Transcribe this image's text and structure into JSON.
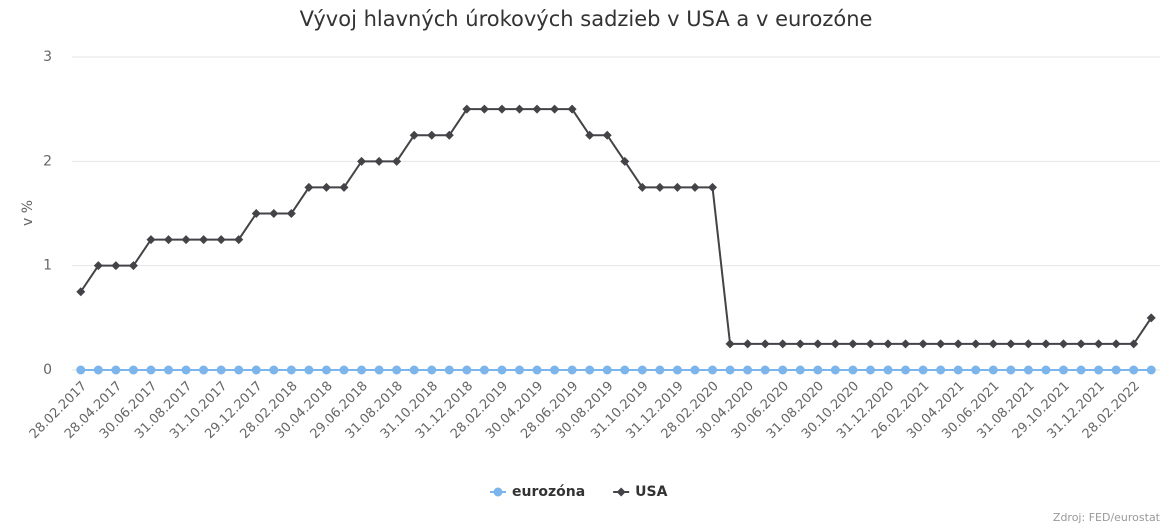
{
  "chart_data": {
    "type": "line",
    "title": "Vývoj hlavných úrokových sadzieb v USA a v eurozóne",
    "y_label": "v %",
    "source": "Zdroj: FED/eurostat",
    "categories": [
      "28.02.2017",
      null,
      "28.04.2017",
      null,
      "30.06.2017",
      null,
      "31.08.2017",
      null,
      "31.10.2017",
      null,
      "29.12.2017",
      null,
      "28.02.2018",
      null,
      "30.04.2018",
      null,
      "29.06.2018",
      null,
      "31.08.2018",
      null,
      "31.10.2018",
      null,
      "31.12.2018",
      null,
      "28.02.2019",
      null,
      "30.04.2019",
      null,
      "28.06.2019",
      null,
      "30.08.2019",
      null,
      "31.10.2019",
      null,
      "31.12.2019",
      null,
      "28.02.2020",
      null,
      "30.04.2020",
      null,
      "30.06.2020",
      null,
      "31.08.2020",
      null,
      "30.10.2020",
      null,
      "31.12.2020",
      null,
      "26.02.2021",
      null,
      "30.04.2021",
      null,
      "30.06.2021",
      null,
      "31.08.2021",
      null,
      "29.10.2021",
      null,
      "31.12.2021",
      null,
      "28.02.2022",
      null
    ],
    "series": [
      {
        "name": "eurozóna",
        "color": "#7cb5ec",
        "marker": "circle",
        "values": [
          0,
          0,
          0,
          0,
          0,
          0,
          0,
          0,
          0,
          0,
          0,
          0,
          0,
          0,
          0,
          0,
          0,
          0,
          0,
          0,
          0,
          0,
          0,
          0,
          0,
          0,
          0,
          0,
          0,
          0,
          0,
          0,
          0,
          0,
          0,
          0,
          0,
          0,
          0,
          0,
          0,
          0,
          0,
          0,
          0,
          0,
          0,
          0,
          0,
          0,
          0,
          0,
          0,
          0,
          0,
          0,
          0,
          0,
          0,
          0,
          0,
          0
        ]
      },
      {
        "name": "USA",
        "color": "#434348",
        "marker": "diamond",
        "values": [
          0.75,
          1,
          1,
          1,
          1.25,
          1.25,
          1.25,
          1.25,
          1.25,
          1.25,
          1.5,
          1.5,
          1.5,
          1.75,
          1.75,
          1.75,
          2,
          2,
          2,
          2.25,
          2.25,
          2.25,
          2.5,
          2.5,
          2.5,
          2.5,
          2.5,
          2.5,
          2.5,
          2.25,
          2.25,
          2,
          1.75,
          1.75,
          1.75,
          1.75,
          1.75,
          0.25,
          0.25,
          0.25,
          0.25,
          0.25,
          0.25,
          0.25,
          0.25,
          0.25,
          0.25,
          0.25,
          0.25,
          0.25,
          0.25,
          0.25,
          0.25,
          0.25,
          0.25,
          0.25,
          0.25,
          0.25,
          0.25,
          0.25,
          0.25,
          0.5
        ]
      }
    ],
    "ylim": [
      0,
      3
    ],
    "yticks": [
      0,
      1,
      2,
      3
    ],
    "grid": true,
    "legend": "bottom"
  }
}
